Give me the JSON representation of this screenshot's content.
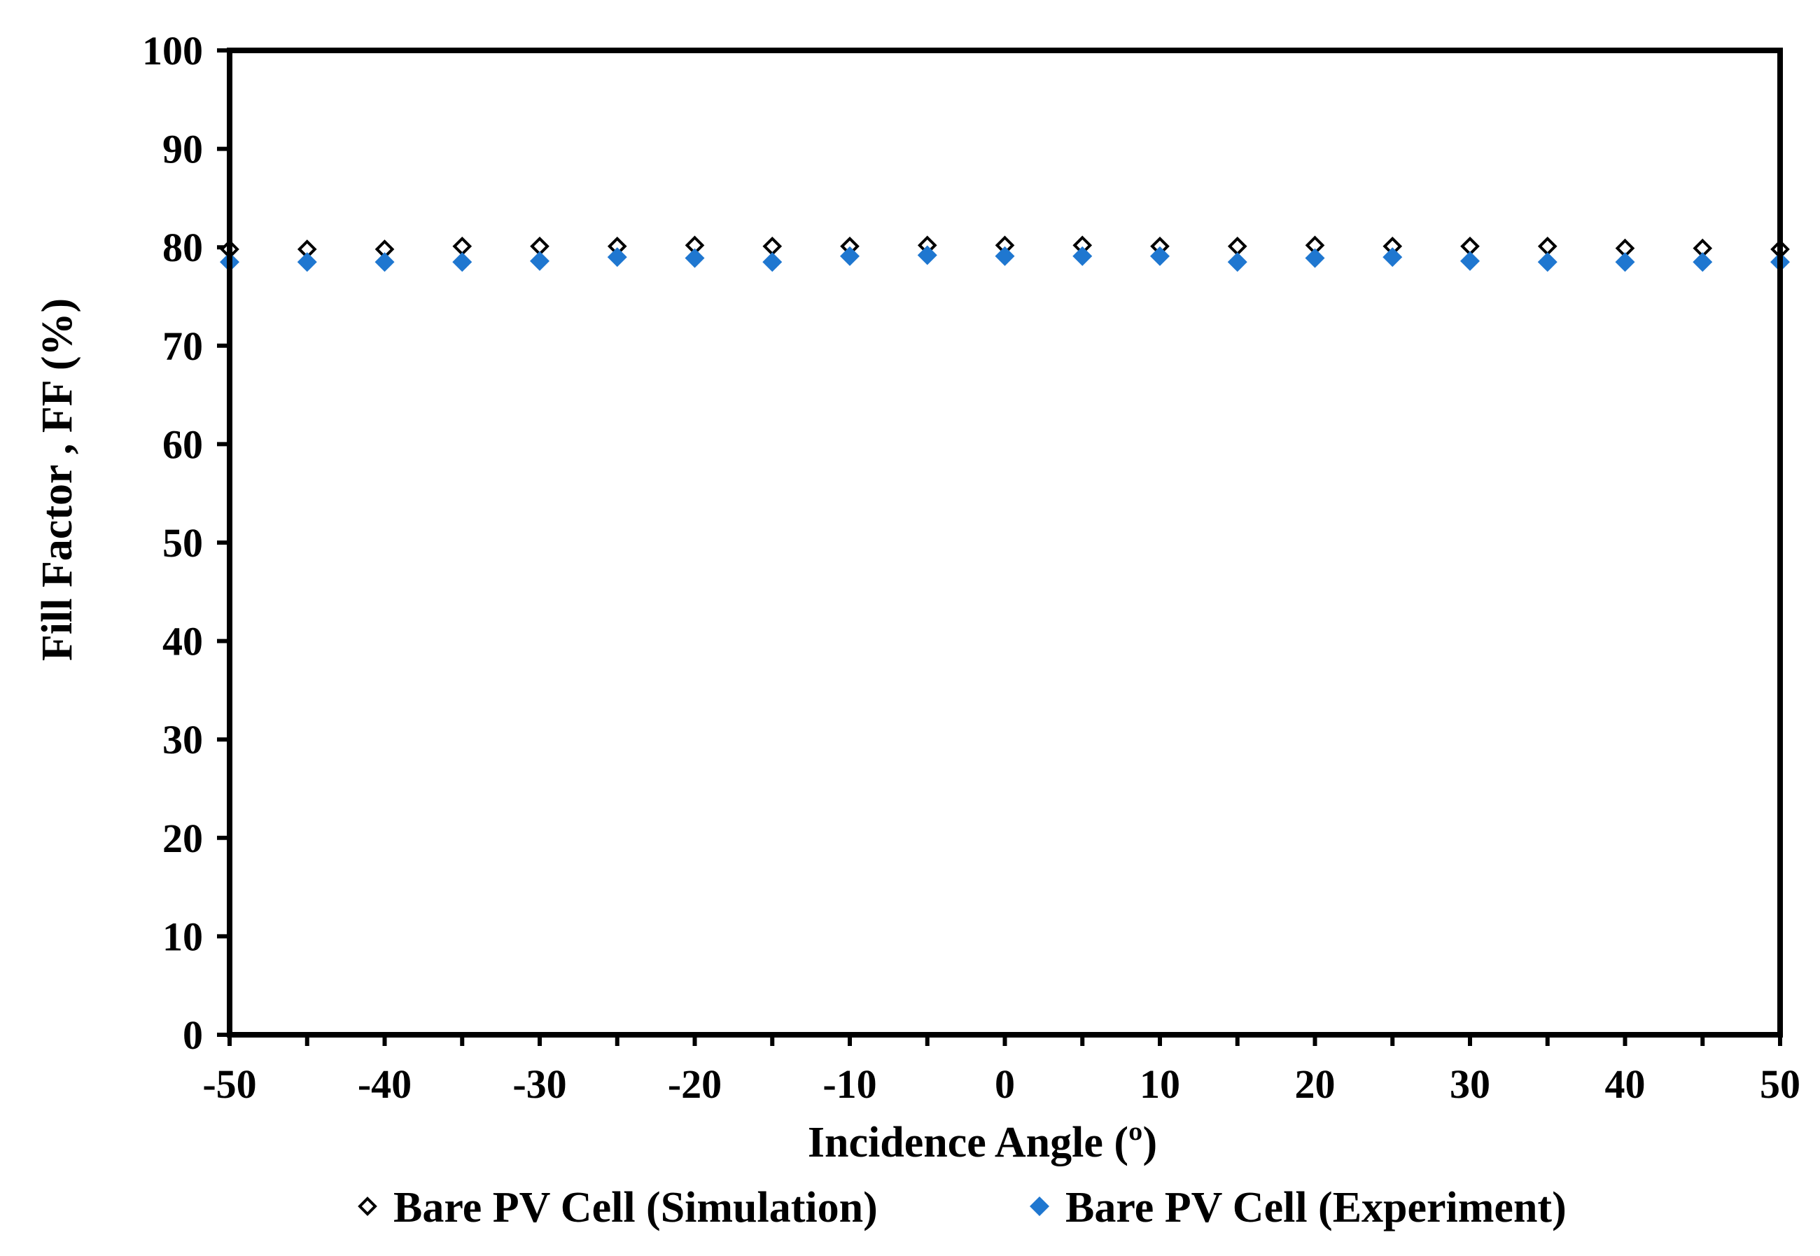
{
  "chart_data": {
    "type": "scatter",
    "title": "",
    "xlabel": "Incidence Angle (º)",
    "ylabel": "Fill Factor , FF (%)",
    "xlim": [
      -50,
      50
    ],
    "ylim": [
      0,
      100
    ],
    "xticks": [
      -50,
      -40,
      -30,
      -20,
      -10,
      0,
      10,
      20,
      30,
      40,
      50
    ],
    "yticks": [
      0,
      10,
      20,
      30,
      40,
      50,
      60,
      70,
      80,
      90,
      100
    ],
    "grid": false,
    "legend_position": "bottom",
    "x": [
      -50,
      -45,
      -40,
      -35,
      -30,
      -25,
      -20,
      -15,
      -10,
      -5,
      0,
      5,
      10,
      15,
      20,
      25,
      30,
      35,
      40,
      45,
      50
    ],
    "series": [
      {
        "name": "Bare PV Cell (Simulation)",
        "marker": "hollow-diamond",
        "color": "#000000",
        "values": [
          79.8,
          79.8,
          79.8,
          80.1,
          80.1,
          80.1,
          80.2,
          80.1,
          80.1,
          80.2,
          80.2,
          80.2,
          80.1,
          80.1,
          80.2,
          80.1,
          80.1,
          80.1,
          79.9,
          79.9,
          79.8
        ]
      },
      {
        "name": "Bare PV Cell (Experiment)",
        "marker": "filled-diamond",
        "color": "#1f77d0",
        "values": [
          78.5,
          78.5,
          78.5,
          78.5,
          78.6,
          79.0,
          78.9,
          78.5,
          79.1,
          79.2,
          79.1,
          79.1,
          79.1,
          78.5,
          78.9,
          79.0,
          78.6,
          78.5,
          78.5,
          78.5,
          78.5
        ]
      }
    ]
  }
}
